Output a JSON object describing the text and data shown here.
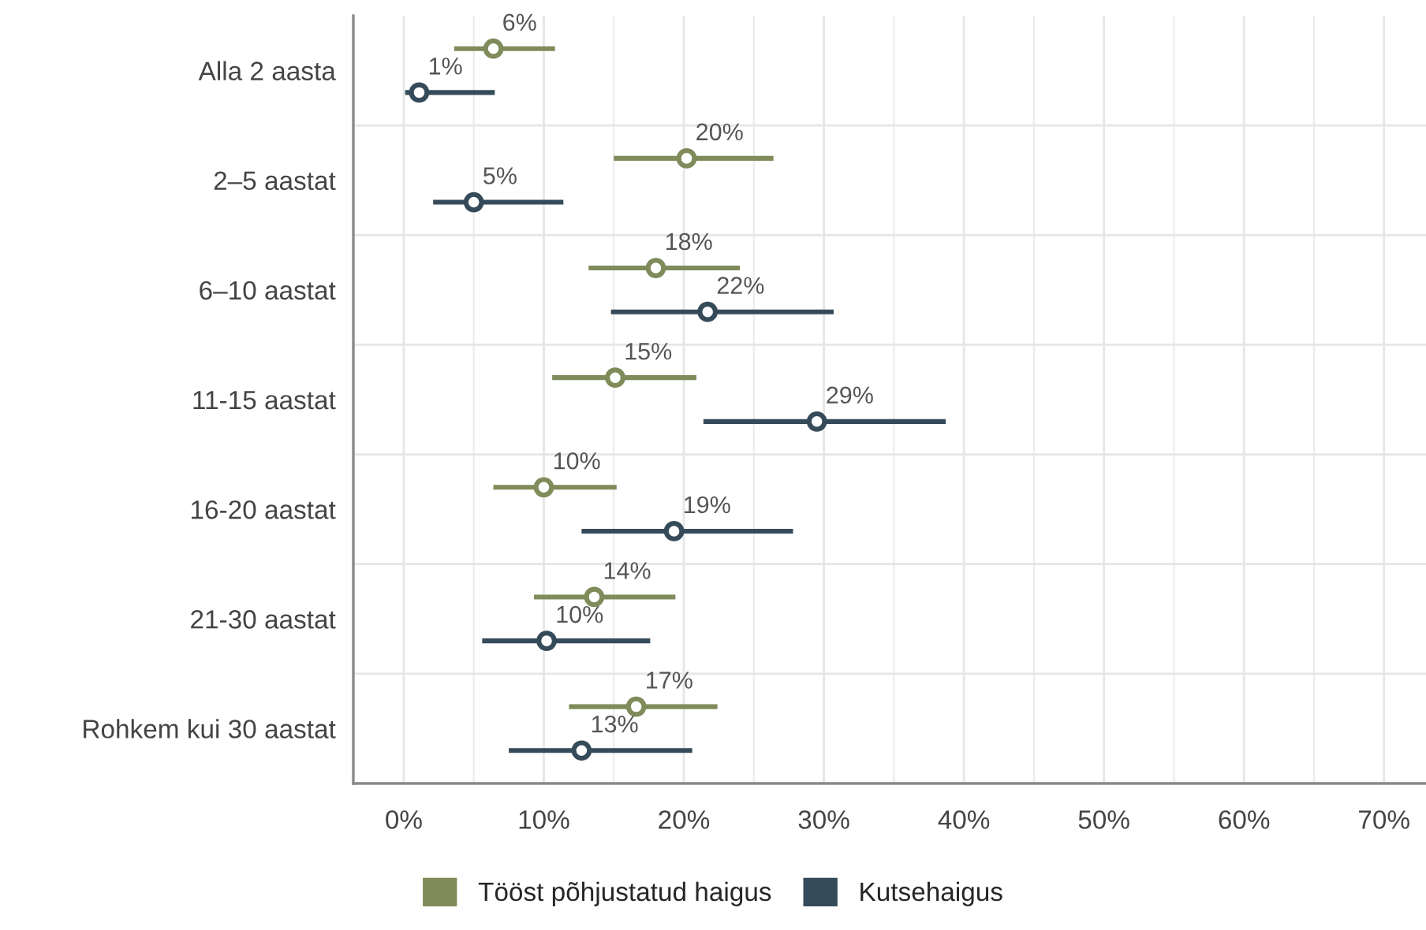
{
  "chart_data": {
    "type": "scatter",
    "orientation": "horizontal",
    "categories": [
      "Alla 2 aasta",
      "2–5 aastat",
      "6–10 aastat",
      "11-15 aastat",
      "16-20 aastat",
      "21-30 aastat",
      "Rohkem kui 30 aastat"
    ],
    "series": [
      {
        "name": "Tööst põhjustatud haigus",
        "color": "#7f8b5a",
        "values": [
          6.4,
          20.2,
          18.0,
          15.1,
          10.0,
          13.6,
          16.6
        ],
        "errors": [
          [
            3.6,
            10.8
          ],
          [
            15.0,
            26.4
          ],
          [
            13.2,
            24.0
          ],
          [
            10.6,
            20.9
          ],
          [
            6.4,
            15.2
          ],
          [
            9.3,
            19.4
          ],
          [
            11.8,
            22.4
          ]
        ],
        "value_labels": [
          "6%",
          "20%",
          "18%",
          "15%",
          "10%",
          "14%",
          "17%"
        ]
      },
      {
        "name": "Kutsehaigus",
        "color": "#364b5a",
        "values": [
          1.1,
          5.0,
          21.7,
          29.5,
          19.3,
          10.2,
          12.7
        ],
        "errors": [
          [
            0.1,
            6.5
          ],
          [
            2.1,
            11.4
          ],
          [
            14.8,
            30.7
          ],
          [
            21.4,
            38.7
          ],
          [
            12.7,
            27.8
          ],
          [
            5.6,
            17.6
          ],
          [
            7.5,
            20.6
          ]
        ],
        "value_labels": [
          "1%",
          "5%",
          "22%",
          "29%",
          "19%",
          "10%",
          "13%"
        ]
      }
    ],
    "xlim": [
      -3.6,
      73
    ],
    "xticks": [
      {
        "value": 0,
        "label": "0%"
      },
      {
        "value": 10,
        "label": "10%"
      },
      {
        "value": 20,
        "label": "20%"
      },
      {
        "value": 30,
        "label": "30%"
      },
      {
        "value": 40,
        "label": "40%"
      },
      {
        "value": 50,
        "label": "50%"
      },
      {
        "value": 60,
        "label": "60%"
      },
      {
        "value": 70,
        "label": "70%"
      }
    ],
    "grid": true,
    "legend": "bottom",
    "marker": "circle"
  }
}
